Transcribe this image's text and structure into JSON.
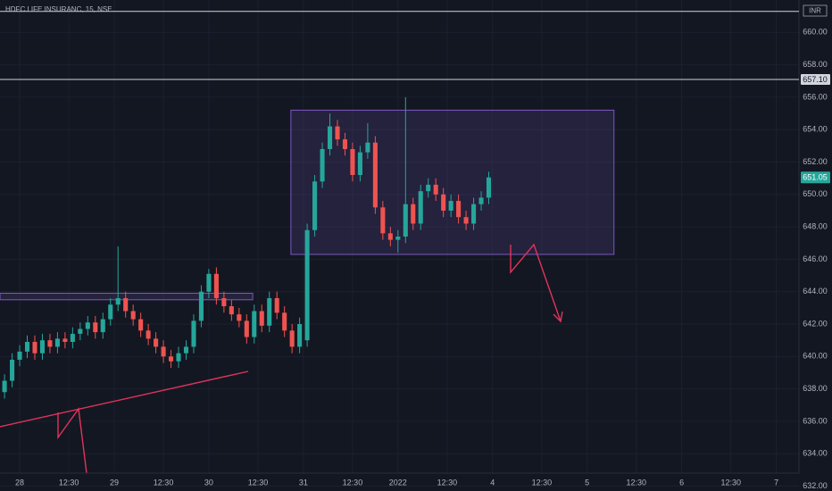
{
  "chart_data": {
    "type": "candlestick",
    "title": "HDFC LIFE INSURANC, 15, NSE",
    "currency": "INR",
    "up_color": "#26a69a",
    "down_color": "#ef5350",
    "x": [
      -4,
      -2,
      0,
      2,
      4,
      6,
      8,
      10,
      12,
      14,
      16,
      18,
      20,
      22,
      24,
      26,
      28,
      30,
      32,
      34,
      36,
      38,
      40,
      42,
      44,
      46,
      48,
      50,
      52,
      54,
      56,
      58,
      60,
      62,
      64,
      66,
      68,
      70,
      72,
      74,
      76,
      78,
      80,
      82,
      84,
      86,
      88,
      90,
      92,
      94,
      96,
      98,
      100,
      102,
      104,
      106,
      108,
      110,
      112,
      114,
      116,
      118,
      120,
      122,
      124
    ],
    "open": [
      637.8,
      638.5,
      639.8,
      640.3,
      640.9,
      640.2,
      641.0,
      640.6,
      641.1,
      640.9,
      641.4,
      641.7,
      642.1,
      641.5,
      642.3,
      643.2,
      643.6,
      642.8,
      642.3,
      641.6,
      641.1,
      640.6,
      640.0,
      639.7,
      640.2,
      640.6,
      642.2,
      644.0,
      645.1,
      643.6,
      643.1,
      642.6,
      642.2,
      641.2,
      642.8,
      641.9,
      643.6,
      642.7,
      641.6,
      640.6,
      641.0,
      647.8,
      650.8,
      652.8,
      654.2,
      653.4,
      652.8,
      651.2,
      652.6,
      653.2,
      649.2,
      647.6,
      647.2,
      647.4,
      649.4,
      648.2,
      650.2,
      650.6,
      650.0,
      649.0,
      649.6,
      648.6,
      648.2,
      649.4,
      649.8
    ],
    "high": [
      638.9,
      640.2,
      640.7,
      641.3,
      641.3,
      641.4,
      641.4,
      641.5,
      641.5,
      641.8,
      642.1,
      642.5,
      642.5,
      642.7,
      643.6,
      646.8,
      644.0,
      643.2,
      642.7,
      642.0,
      641.5,
      641.0,
      640.4,
      640.6,
      641.0,
      642.6,
      644.4,
      645.4,
      645.5,
      644.0,
      643.5,
      643.0,
      642.6,
      643.2,
      643.2,
      644.0,
      644.0,
      643.1,
      642.0,
      642.4,
      648.2,
      651.2,
      653.2,
      655.0,
      654.6,
      653.8,
      653.2,
      653.0,
      654.4,
      653.6,
      649.6,
      648.0,
      647.8,
      656.0,
      649.8,
      650.6,
      651.0,
      651.0,
      650.4,
      650.0,
      650.0,
      649.0,
      649.8,
      650.2,
      651.4
    ],
    "low": [
      637.4,
      638.1,
      639.4,
      639.9,
      639.8,
      639.8,
      640.2,
      640.2,
      640.5,
      640.5,
      641.0,
      641.3,
      641.1,
      641.1,
      641.9,
      642.8,
      642.4,
      641.9,
      641.2,
      640.7,
      640.2,
      639.6,
      639.3,
      639.3,
      639.8,
      640.2,
      641.8,
      643.6,
      643.2,
      642.7,
      642.2,
      641.8,
      640.8,
      640.8,
      641.5,
      641.5,
      642.3,
      641.2,
      640.2,
      640.2,
      640.6,
      647.4,
      650.4,
      652.4,
      653.0,
      652.4,
      650.8,
      650.8,
      652.2,
      648.8,
      647.2,
      646.8,
      646.4,
      647.0,
      647.8,
      647.8,
      649.8,
      649.6,
      648.6,
      648.6,
      648.2,
      647.8,
      647.8,
      649.0,
      649.4
    ],
    "close": [
      638.5,
      639.8,
      640.3,
      640.9,
      640.2,
      641.0,
      640.6,
      641.1,
      640.9,
      641.4,
      641.7,
      642.1,
      641.5,
      642.3,
      643.2,
      643.6,
      642.8,
      642.3,
      641.6,
      641.1,
      640.6,
      640.0,
      639.7,
      640.2,
      640.6,
      642.2,
      644.0,
      645.1,
      643.6,
      643.1,
      642.6,
      642.2,
      641.2,
      642.8,
      641.9,
      643.6,
      642.7,
      641.6,
      640.6,
      642.0,
      647.8,
      650.8,
      652.8,
      654.2,
      653.4,
      652.8,
      651.2,
      652.6,
      653.2,
      649.2,
      647.6,
      647.2,
      647.4,
      649.4,
      648.2,
      650.2,
      650.6,
      650.0,
      649.0,
      649.6,
      648.6,
      648.2,
      649.4,
      649.8,
      651.05
    ],
    "last_price": 651.05,
    "levels": [
      661.3,
      {
        "value": 657.1,
        "label": "657.10"
      }
    ],
    "zones": [
      {
        "x": [
          71.7,
          157.1
        ],
        "y": [
          646.3,
          655.2
        ]
      },
      {
        "x": [
          -5.2,
          61.6
        ],
        "y": [
          643.5,
          643.9
        ]
      }
    ],
    "xlim": [
      -5.2,
      206
    ],
    "ylim": [
      632.8,
      662.0
    ],
    "xticks": [
      {
        "value": 0,
        "label": "28"
      },
      {
        "value": 13,
        "label": "12:30"
      },
      {
        "value": 25,
        "label": "29"
      },
      {
        "value": 38,
        "label": "12:30"
      },
      {
        "value": 50,
        "label": "30"
      },
      {
        "value": 63,
        "label": "12:30"
      },
      {
        "value": 75,
        "label": "31"
      },
      {
        "value": 88,
        "label": "12:30"
      },
      {
        "value": 100,
        "label": "2022"
      },
      {
        "value": 113,
        "label": "12:30"
      },
      {
        "value": 125,
        "label": "4"
      },
      {
        "value": 138,
        "label": "12:30"
      },
      {
        "value": 150,
        "label": "5"
      },
      {
        "value": 163,
        "label": "12:30"
      },
      {
        "value": 175,
        "label": "6"
      },
      {
        "value": 188,
        "label": "12:30"
      },
      {
        "value": 200,
        "label": "7"
      }
    ],
    "yticks": [
      {
        "value": 632,
        "label": "632.00"
      },
      {
        "value": 634,
        "label": "634.00"
      },
      {
        "value": 636,
        "label": "636.00"
      },
      {
        "value": 638,
        "label": "638.00"
      },
      {
        "value": 640,
        "label": "640.00"
      },
      {
        "value": 642,
        "label": "642.00"
      },
      {
        "value": 644,
        "label": "644.00"
      },
      {
        "value": 646,
        "label": "646.00"
      },
      {
        "value": 648,
        "label": "648.00"
      },
      {
        "value": 650,
        "label": "650.00"
      },
      {
        "value": 652,
        "label": "652.00"
      },
      {
        "value": 654,
        "label": "654.00"
      },
      {
        "value": 656,
        "label": "656.00"
      },
      {
        "value": 658,
        "label": "658.00"
      },
      {
        "value": 660,
        "label": "660.00"
      }
    ],
    "grid": true
  }
}
